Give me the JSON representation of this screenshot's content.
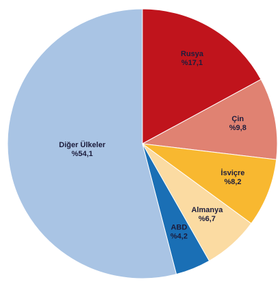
{
  "chart_data": {
    "type": "pie",
    "categories": [
      "Rusya",
      "Çin",
      "İsviçre",
      "Almanya",
      "ABD",
      "Diğer Ülkeler"
    ],
    "values": [
      17.1,
      9.8,
      8.2,
      6.7,
      4.2,
      54.1
    ],
    "value_labels": [
      "%17,1",
      "%9,8",
      "%8,2",
      "%6,7",
      "%4,2",
      "%54,1"
    ],
    "colors": [
      "#c0141c",
      "#e08272",
      "#f8b830",
      "#fbdba2",
      "#1a6fb5",
      "#a9c4e4"
    ]
  }
}
